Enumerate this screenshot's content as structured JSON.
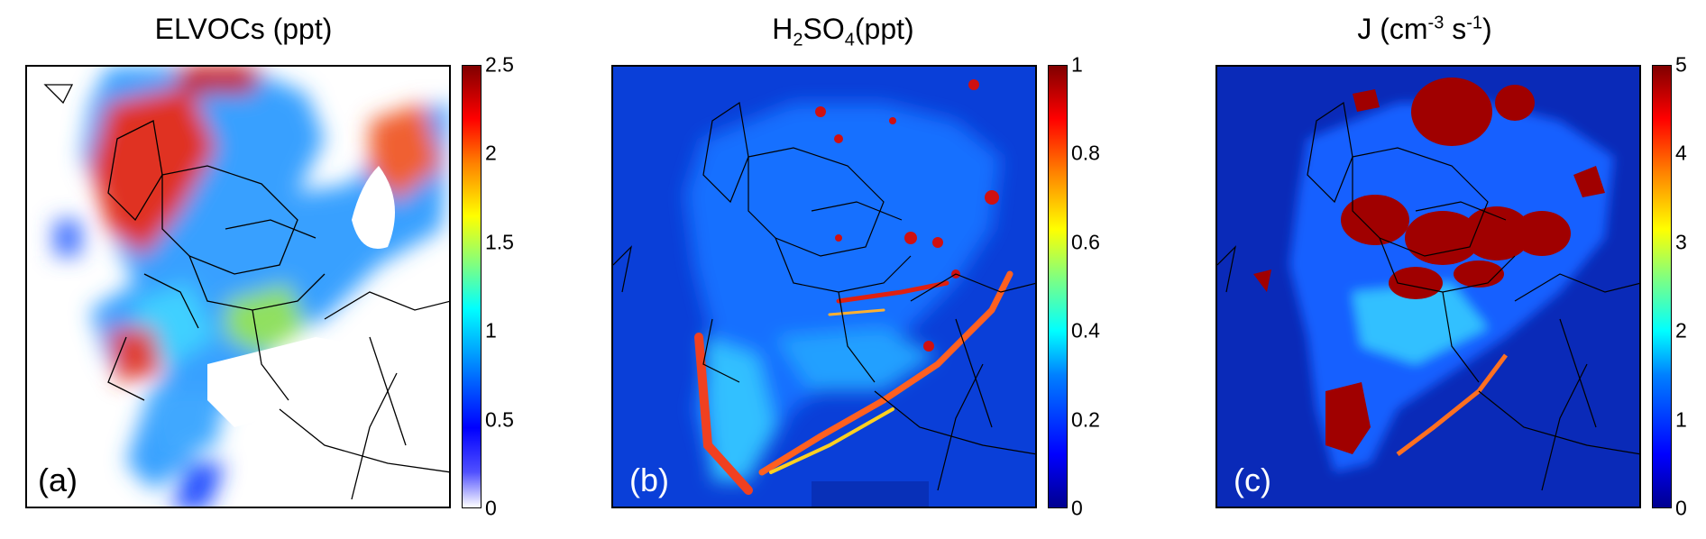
{
  "panels": [
    {
      "title_main": "ELVOCs (ppt)",
      "label": "(a)",
      "colorbar": {
        "min": 0,
        "max": 2.5,
        "ticks": [
          "0",
          "0.5",
          "1",
          "1.5",
          "2",
          "2.5"
        ],
        "colormap": "jet-white"
      },
      "background": "#ffffff"
    },
    {
      "title_a": "H",
      "title_sub1": "2",
      "title_b": "SO",
      "title_sub2": "4",
      "title_c": "(ppt)",
      "label": "(b)",
      "colorbar": {
        "min": 0,
        "max": 1,
        "ticks": [
          "0",
          "0.2",
          "0.4",
          "0.6",
          "0.8",
          "1"
        ],
        "colormap": "jet"
      },
      "background": "#0a3fd8"
    },
    {
      "title_a": "J (cm",
      "title_sup1": "-3",
      "title_b": " s",
      "title_sup2": "-1",
      "title_c": ")",
      "label": "(c)",
      "colorbar": {
        "min": 0,
        "max": 5,
        "ticks": [
          "0",
          "1",
          "2",
          "3",
          "4",
          "5"
        ],
        "colormap": "jet"
      },
      "background": "#0a2ab8"
    }
  ],
  "chart_data": [
    {
      "type": "heatmap",
      "title": "ELVOCs (ppt)",
      "colorbar_range": [
        0,
        2.5
      ],
      "panel_label": "(a)"
    },
    {
      "type": "heatmap",
      "title": "H2SO4 (ppt)",
      "colorbar_range": [
        0,
        1
      ],
      "panel_label": "(b)"
    },
    {
      "type": "heatmap",
      "title": "J (cm-3 s-1)",
      "colorbar_range": [
        0,
        5
      ],
      "panel_label": "(c)"
    }
  ]
}
